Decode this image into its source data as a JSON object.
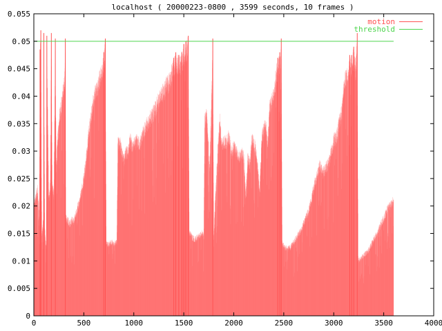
{
  "colors": {
    "motion": "#ff5252",
    "threshold": "#4cd44c",
    "axis": "#000000",
    "background": "#ffffff"
  },
  "chart_data": {
    "type": "area",
    "title": "localhost ( 20000223-0800 , 3599 seconds, 10 frames )",
    "xlabel": "",
    "ylabel": "",
    "xlim": [
      0,
      4000
    ],
    "ylim": [
      0,
      0.055
    ],
    "x_ticks": [
      0,
      500,
      1000,
      1500,
      2000,
      2500,
      3000,
      3500,
      4000
    ],
    "x_tick_labels": [
      "0",
      "500",
      "1000",
      "1500",
      "2000",
      "2500",
      "3000",
      "3500",
      "4000"
    ],
    "y_ticks": [
      0,
      0.005,
      0.01,
      0.015,
      0.02,
      0.025,
      0.03,
      0.035,
      0.04,
      0.045,
      0.05,
      0.055
    ],
    "y_tick_labels": [
      "0",
      "0.005",
      "0.01",
      "0.015",
      "0.02",
      "0.025",
      "0.03",
      "0.035",
      "0.04",
      "0.045",
      "0.05",
      "0.055"
    ],
    "grid": false,
    "legend_position": "top-right",
    "series": [
      {
        "name": "motion",
        "style": "impulses",
        "points": [
          [
            0,
            0.021
          ],
          [
            20,
            0.0225
          ],
          [
            40,
            0.024
          ],
          [
            55,
            0.0185
          ],
          [
            62,
            0.0485
          ],
          [
            70,
            0.052
          ],
          [
            80,
            0.0155
          ],
          [
            95,
            0.018
          ],
          [
            100,
            0.0515
          ],
          [
            110,
            0.016
          ],
          [
            125,
            0.0128
          ],
          [
            130,
            0.051
          ],
          [
            150,
            0.022
          ],
          [
            165,
            0.025
          ],
          [
            175,
            0.0515
          ],
          [
            185,
            0.025
          ],
          [
            200,
            0.023
          ],
          [
            215,
            0.0505
          ],
          [
            225,
            0.028
          ],
          [
            240,
            0.034
          ],
          [
            260,
            0.038
          ],
          [
            280,
            0.041
          ],
          [
            300,
            0.044
          ],
          [
            310,
            0.045
          ],
          [
            315,
            0.0505
          ],
          [
            320,
            0.0185
          ],
          [
            340,
            0.018
          ],
          [
            360,
            0.0175
          ],
          [
            380,
            0.0182
          ],
          [
            400,
            0.018
          ],
          [
            430,
            0.02
          ],
          [
            460,
            0.022
          ],
          [
            490,
            0.025
          ],
          [
            520,
            0.029
          ],
          [
            550,
            0.035
          ],
          [
            580,
            0.039
          ],
          [
            600,
            0.0415
          ],
          [
            620,
            0.0425
          ],
          [
            640,
            0.0435
          ],
          [
            660,
            0.045
          ],
          [
            680,
            0.046
          ],
          [
            700,
            0.048
          ],
          [
            715,
            0.0505
          ],
          [
            725,
            0.014
          ],
          [
            740,
            0.0135
          ],
          [
            760,
            0.0138
          ],
          [
            780,
            0.014
          ],
          [
            800,
            0.0137
          ],
          [
            820,
            0.014
          ],
          [
            830,
            0.014
          ],
          [
            840,
            0.0325
          ],
          [
            860,
            0.033
          ],
          [
            880,
            0.031
          ],
          [
            900,
            0.0295
          ],
          [
            920,
            0.031
          ],
          [
            940,
            0.031
          ],
          [
            960,
            0.0335
          ],
          [
            980,
            0.0325
          ],
          [
            1000,
            0.0325
          ],
          [
            1020,
            0.033
          ],
          [
            1040,
            0.0335
          ],
          [
            1060,
            0.0325
          ],
          [
            1080,
            0.034
          ],
          [
            1100,
            0.035
          ],
          [
            1120,
            0.036
          ],
          [
            1150,
            0.037
          ],
          [
            1180,
            0.038
          ],
          [
            1210,
            0.039
          ],
          [
            1240,
            0.0405
          ],
          [
            1270,
            0.042
          ],
          [
            1300,
            0.0425
          ],
          [
            1330,
            0.044
          ],
          [
            1360,
            0.0445
          ],
          [
            1380,
            0.046
          ],
          [
            1400,
            0.047
          ],
          [
            1420,
            0.048
          ],
          [
            1450,
            0.0475
          ],
          [
            1480,
            0.048
          ],
          [
            1500,
            0.0495
          ],
          [
            1520,
            0.05
          ],
          [
            1545,
            0.051
          ],
          [
            1555,
            0.016
          ],
          [
            1580,
            0.015
          ],
          [
            1610,
            0.0145
          ],
          [
            1640,
            0.015
          ],
          [
            1670,
            0.0155
          ],
          [
            1690,
            0.0158
          ],
          [
            1700,
            0.015
          ],
          [
            1710,
            0.037
          ],
          [
            1730,
            0.038
          ],
          [
            1760,
            0.028
          ],
          [
            1790,
            0.0505
          ],
          [
            1800,
            0.015
          ],
          [
            1820,
            0.024
          ],
          [
            1840,
            0.031
          ],
          [
            1860,
            0.0375
          ],
          [
            1880,
            0.032
          ],
          [
            1900,
            0.033
          ],
          [
            1930,
            0.033
          ],
          [
            1950,
            0.034
          ],
          [
            1980,
            0.031
          ],
          [
            2000,
            0.032
          ],
          [
            2030,
            0.031
          ],
          [
            2060,
            0.03
          ],
          [
            2080,
            0.031
          ],
          [
            2100,
            0.03
          ],
          [
            2120,
            0.0225
          ],
          [
            2140,
            0.03
          ],
          [
            2160,
            0.029
          ],
          [
            2180,
            0.0335
          ],
          [
            2200,
            0.033
          ],
          [
            2220,
            0.0315
          ],
          [
            2240,
            0.028
          ],
          [
            2260,
            0.0235
          ],
          [
            2280,
            0.034
          ],
          [
            2300,
            0.0355
          ],
          [
            2320,
            0.036
          ],
          [
            2340,
            0.033
          ],
          [
            2360,
            0.04
          ],
          [
            2380,
            0.041
          ],
          [
            2400,
            0.0415
          ],
          [
            2420,
            0.045
          ],
          [
            2440,
            0.047
          ],
          [
            2460,
            0.048
          ],
          [
            2475,
            0.0505
          ],
          [
            2485,
            0.0138
          ],
          [
            2510,
            0.013
          ],
          [
            2540,
            0.0128
          ],
          [
            2570,
            0.013
          ],
          [
            2600,
            0.014
          ],
          [
            2650,
            0.0155
          ],
          [
            2700,
            0.0175
          ],
          [
            2750,
            0.02
          ],
          [
            2780,
            0.0225
          ],
          [
            2800,
            0.0245
          ],
          [
            2830,
            0.0265
          ],
          [
            2860,
            0.0285
          ],
          [
            2890,
            0.027
          ],
          [
            2920,
            0.028
          ],
          [
            2950,
            0.029
          ],
          [
            2980,
            0.0315
          ],
          [
            3000,
            0.0335
          ],
          [
            3020,
            0.0335
          ],
          [
            3040,
            0.035
          ],
          [
            3060,
            0.0375
          ],
          [
            3080,
            0.0385
          ],
          [
            3100,
            0.0435
          ],
          [
            3120,
            0.045
          ],
          [
            3140,
            0.046
          ],
          [
            3160,
            0.0475
          ],
          [
            3180,
            0.0475
          ],
          [
            3200,
            0.049
          ],
          [
            3220,
            0.0465
          ],
          [
            3235,
            0.0515
          ],
          [
            3245,
            0.0105
          ],
          [
            3260,
            0.0108
          ],
          [
            3300,
            0.0115
          ],
          [
            3350,
            0.0125
          ],
          [
            3400,
            0.0145
          ],
          [
            3450,
            0.0165
          ],
          [
            3500,
            0.0185
          ],
          [
            3540,
            0.0205
          ],
          [
            3570,
            0.021
          ],
          [
            3599,
            0.0225
          ]
        ]
      },
      {
        "name": "threshold",
        "style": "line",
        "points": [
          [
            0,
            0.05
          ],
          [
            3599,
            0.05
          ]
        ]
      }
    ]
  }
}
